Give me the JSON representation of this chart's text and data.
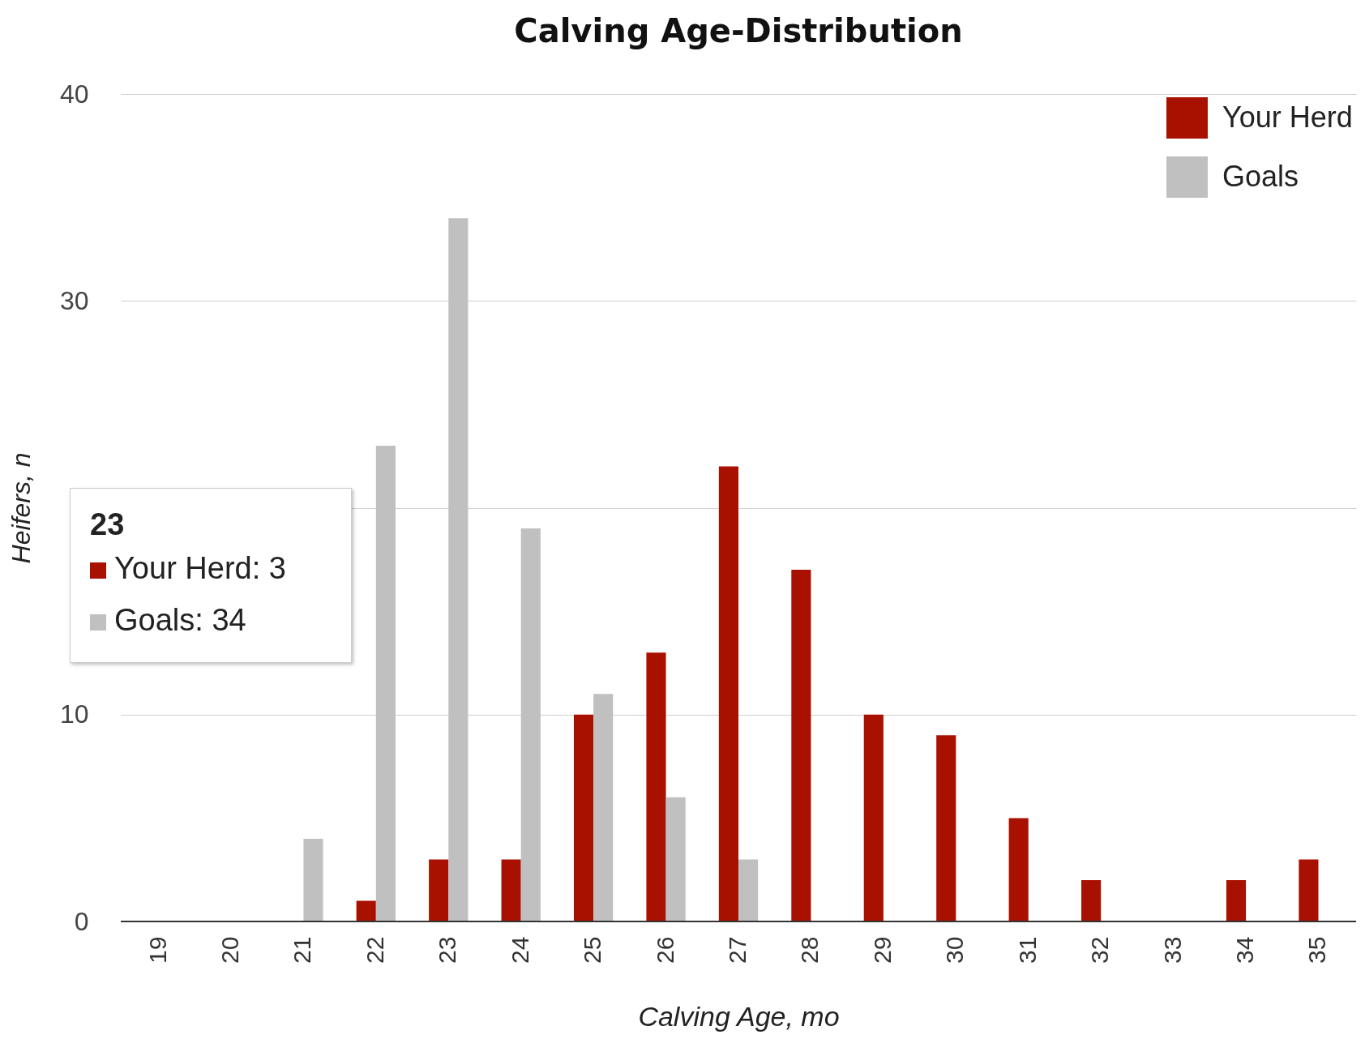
{
  "chart_data": {
    "type": "bar",
    "title": "Calving Age-Distribution",
    "xlabel": "Calving Age, mo",
    "ylabel": "Heifers, n",
    "categories": [
      "19",
      "20",
      "21",
      "22",
      "23",
      "24",
      "25",
      "26",
      "27",
      "28",
      "29",
      "30",
      "31",
      "32",
      "33",
      "34",
      "35"
    ],
    "series": [
      {
        "name": "Your Herd",
        "color": "#a81100",
        "values": [
          0,
          0,
          0,
          1,
          3,
          3,
          10,
          13,
          22,
          17,
          10,
          9,
          5,
          2,
          0,
          2,
          3
        ]
      },
      {
        "name": "Goals",
        "color": "#c0c0c0",
        "values": [
          0,
          0,
          4,
          23,
          34,
          19,
          11,
          6,
          3,
          0,
          0,
          0,
          0,
          0,
          0,
          0,
          0
        ]
      }
    ],
    "ylim": [
      0,
      40
    ],
    "yticks": [
      0,
      10,
      {
        "value": 20,
        "label": null
      },
      30,
      40
    ],
    "grid": "y",
    "legend": "top right",
    "annotations": [
      "23",
      "Your Herd: 3",
      "Goals: 34"
    ]
  }
}
